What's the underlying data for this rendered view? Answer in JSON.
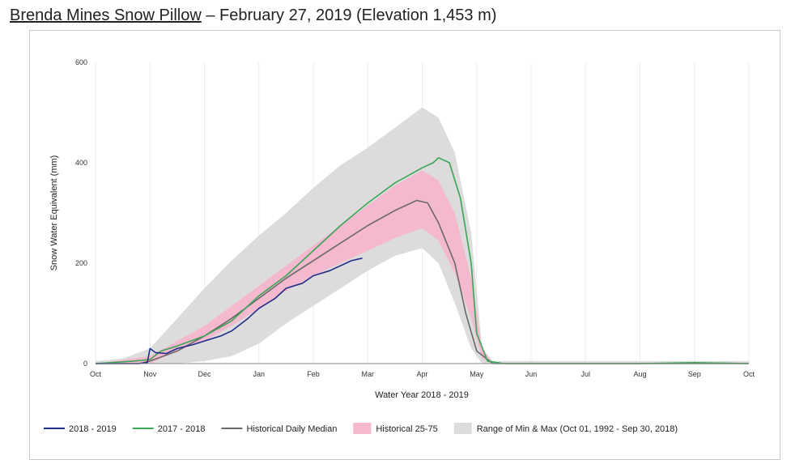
{
  "header": {
    "station_link": "Brenda Mines Snow Pillow",
    "rest": " – February 27, 2019 (Elevation 1,453 m)"
  },
  "colors": {
    "s2018_2019": "#1f2f8a",
    "s2017_2018": "#3aa655",
    "median": "#6a6a6a",
    "p25_75": "#f4b8cf",
    "minmax": "#dcdcdc"
  },
  "chart_data": {
    "type": "area",
    "xlabel": "Water Year 2018 - 2019",
    "ylabel": "Snow Water Equivalent (mm)",
    "ylim": [
      0,
      600
    ],
    "yticks": [
      0,
      200,
      400,
      600
    ],
    "xlim": [
      0,
      12
    ],
    "xticks": [
      "Oct",
      "Nov",
      "Dec",
      "Jan",
      "Feb",
      "Mar",
      "Apr",
      "May",
      "Jun",
      "Jul",
      "Aug",
      "Sep",
      "Oct"
    ],
    "grid": "vertical",
    "legend_position": "bottom",
    "bands": [
      {
        "name": "Range of Min & Max (Oct 01, 1992 - Sep 30, 2018)",
        "x": [
          0,
          0.5,
          1,
          1.5,
          2,
          2.5,
          3,
          3.5,
          4,
          4.5,
          5,
          5.5,
          6,
          6.3,
          6.6,
          6.9,
          7.1,
          7.3,
          8,
          9,
          10,
          11,
          12
        ],
        "lower": [
          0,
          0,
          0,
          0,
          5,
          15,
          40,
          80,
          115,
          150,
          185,
          215,
          230,
          200,
          120,
          30,
          0,
          0,
          0,
          0,
          0,
          0,
          0
        ],
        "upper": [
          5,
          10,
          30,
          90,
          150,
          205,
          255,
          300,
          350,
          395,
          430,
          470,
          510,
          490,
          420,
          260,
          30,
          5,
          5,
          5,
          5,
          5,
          5
        ]
      },
      {
        "name": "Historical 25-75",
        "x": [
          0,
          1,
          1.5,
          2,
          2.5,
          3,
          3.5,
          4,
          4.5,
          5,
          5.5,
          6,
          6.3,
          6.6,
          6.9,
          7.1,
          7.3,
          8,
          12
        ],
        "lower": [
          0,
          0,
          25,
          45,
          75,
          110,
          145,
          175,
          200,
          225,
          250,
          270,
          245,
          180,
          90,
          10,
          0,
          0,
          0
        ],
        "upper": [
          0,
          15,
          45,
          75,
          115,
          155,
          195,
          235,
          275,
          315,
          355,
          385,
          365,
          300,
          170,
          30,
          0,
          0,
          0
        ]
      }
    ],
    "series": [
      {
        "name": "Historical Daily Median",
        "x": [
          0,
          0.8,
          1,
          1.5,
          2,
          2.5,
          3,
          3.5,
          4,
          4.5,
          5,
          5.5,
          5.9,
          6.1,
          6.3,
          6.6,
          6.8,
          7.0,
          7.3,
          8,
          9,
          10,
          11,
          12
        ],
        "y": [
          0,
          0,
          5,
          25,
          55,
          90,
          130,
          170,
          205,
          240,
          275,
          305,
          325,
          320,
          280,
          200,
          100,
          25,
          0,
          0,
          0,
          0,
          0,
          0
        ]
      },
      {
        "name": "2017 - 2018",
        "x": [
          0,
          0.7,
          1,
          1.2,
          1.5,
          2,
          2.5,
          3,
          3.5,
          4,
          4.5,
          5,
          5.5,
          6,
          6.2,
          6.3,
          6.5,
          6.7,
          6.9,
          7.0,
          7.2,
          7.5,
          8,
          9,
          10,
          11,
          12
        ],
        "y": [
          0,
          5,
          8,
          25,
          35,
          55,
          85,
          135,
          175,
          225,
          275,
          320,
          360,
          390,
          400,
          410,
          400,
          330,
          200,
          60,
          5,
          0,
          0,
          0,
          0,
          2,
          0
        ]
      },
      {
        "name": "2018 - 2019",
        "x": [
          0,
          0.8,
          0.95,
          1.0,
          1.1,
          1.3,
          1.5,
          1.8,
          2,
          2.3,
          2.5,
          2.8,
          3,
          3.3,
          3.5,
          3.8,
          4,
          4.3,
          4.5,
          4.7,
          4.9
        ],
        "y": [
          0,
          0,
          2,
          30,
          22,
          20,
          30,
          38,
          45,
          55,
          65,
          90,
          110,
          130,
          150,
          160,
          175,
          185,
          195,
          205,
          210
        ]
      }
    ]
  },
  "legend": [
    {
      "key": "2018 - 2019",
      "style": "line",
      "color": "#1f2f8a"
    },
    {
      "key": "2017 - 2018",
      "style": "line",
      "color": "#3aa655"
    },
    {
      "key": "Historical Daily Median",
      "style": "line",
      "color": "#6a6a6a"
    },
    {
      "key": "Historical 25-75",
      "style": "box",
      "color": "#f4b8cf"
    },
    {
      "key": "Range of Min & Max (Oct 01, 1992 - Sep 30, 2018)",
      "style": "box",
      "color": "#dcdcdc"
    }
  ]
}
